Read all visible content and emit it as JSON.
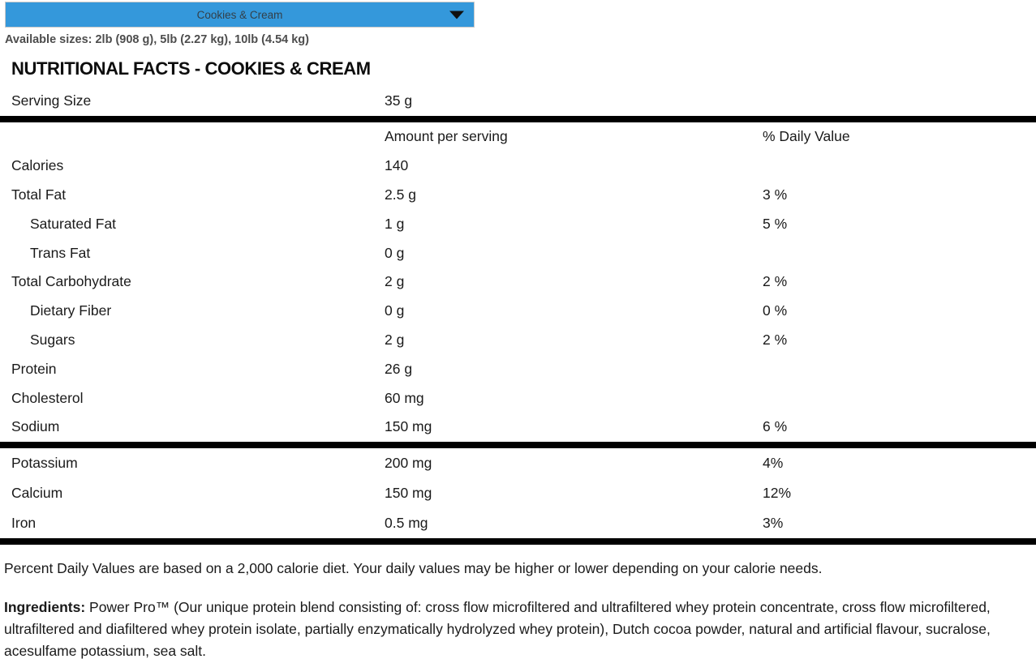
{
  "dropdown": {
    "selected": "Cookies & Cream"
  },
  "available_sizes": "Available sizes: 2lb (908 g), 5lb (2.27 kg), 10lb (4.54 kg)",
  "heading": "NUTRITIONAL FACTS - COOKIES & CREAM",
  "serving": {
    "label": "Serving Size",
    "value": "35 g"
  },
  "table": {
    "headers": {
      "amount": "Amount per serving",
      "dv": "% Daily Value"
    },
    "rows": [
      {
        "label": "Calories",
        "amount": "140",
        "dv": ""
      },
      {
        "label": "Total Fat",
        "amount": "2.5 g",
        "dv": "3 %"
      },
      {
        "label": "Saturated Fat",
        "amount": "1 g",
        "dv": "5 %"
      },
      {
        "label": "Trans Fat",
        "amount": "0 g",
        "dv": ""
      },
      {
        "label": "Total Carbohydrate",
        "amount": "2 g",
        "dv": "2 %"
      },
      {
        "label": "Dietary Fiber",
        "amount": "0 g",
        "dv": "0 %"
      },
      {
        "label": "Sugars",
        "amount": "2 g",
        "dv": "2 %"
      },
      {
        "label": "Protein",
        "amount": "26 g",
        "dv": ""
      },
      {
        "label": "Cholesterol",
        "amount": "60 mg",
        "dv": ""
      },
      {
        "label": "Sodium",
        "amount": "150 mg",
        "dv": "6 %"
      }
    ],
    "minerals": [
      {
        "label": "Potassium",
        "amount": "200 mg",
        "dv": "4%"
      },
      {
        "label": "Calcium",
        "amount": "150 mg",
        "dv": "12%"
      },
      {
        "label": "Iron",
        "amount": "0.5 mg",
        "dv": "3%"
      }
    ]
  },
  "footnote": "Percent Daily Values are based on a 2,000 calorie diet. Your daily values may be higher or lower depending on your calorie needs.",
  "ingredients": {
    "label": "Ingredients:",
    "text": " Power Pro™ (Our unique protein blend consisting of: cross flow microfiltered and ultrafiltered whey protein concentrate, cross flow microfiltered, ultrafiltered and diafiltered whey protein isolate, partially enzymatically hydrolyzed whey protein), Dutch cocoa powder, natural and artificial flavour, sucralose, acesulfame potassium, sea salt."
  },
  "colors": {
    "dropdown_bg": "#3498db",
    "dropdown_text": "#333f48",
    "divider": "#000000"
  }
}
